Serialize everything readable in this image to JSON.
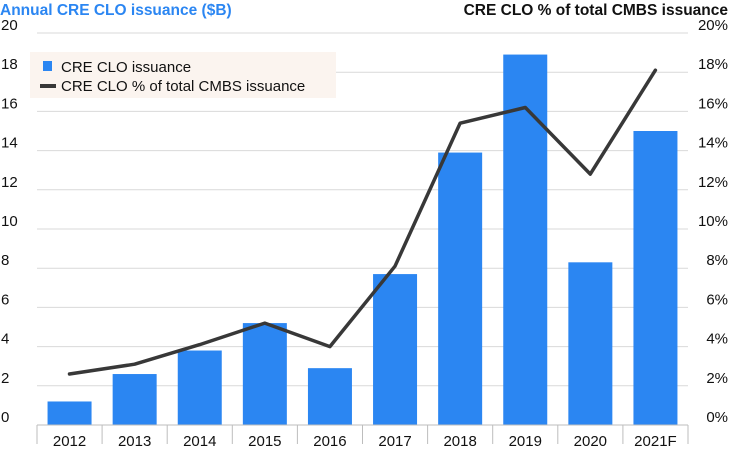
{
  "chart_data": {
    "type": "bar",
    "left_axis_title": "Annual CRE CLO issuance ($B)",
    "right_axis_title": "CRE CLO % of total CMBS issuance",
    "categories": [
      "2012",
      "2013",
      "2014",
      "2015",
      "2016",
      "2017",
      "2018",
      "2019",
      "2020",
      "2021F"
    ],
    "y_left": {
      "range": [
        0,
        20
      ],
      "ticks": [
        "0",
        "2",
        "4",
        "6",
        "8",
        "10",
        "12",
        "14",
        "16",
        "18",
        "20"
      ]
    },
    "y_right": {
      "range": [
        0,
        20
      ],
      "ticks": [
        "0%",
        "2%",
        "4%",
        "6%",
        "8%",
        "10%",
        "12%",
        "14%",
        "16%",
        "18%",
        "20%"
      ]
    },
    "series": [
      {
        "name": "CRE CLO issuance",
        "type": "bar",
        "axis": "left",
        "values": [
          1.2,
          2.6,
          3.8,
          5.2,
          2.9,
          7.7,
          13.9,
          18.9,
          8.3,
          15.0
        ]
      },
      {
        "name": "CRE CLO % of total CMBS issuance",
        "type": "line",
        "axis": "right",
        "values": [
          2.6,
          3.1,
          4.1,
          5.2,
          4.0,
          8.1,
          15.4,
          16.2,
          12.8,
          18.1
        ]
      }
    ],
    "grid": true,
    "legend_position": "top-left",
    "colors": {
      "bar": "#2b86f2",
      "line": "#383838",
      "left_title": "#2b86f2",
      "right_title": "#111111",
      "grid": "#d9d9d9",
      "legend_bg": "#fbf4ef"
    }
  }
}
